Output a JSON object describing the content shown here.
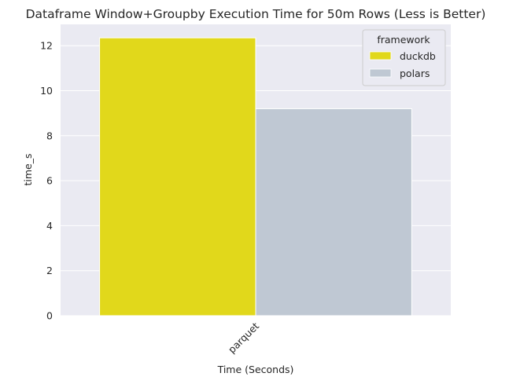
{
  "chart_data": {
    "type": "bar",
    "title": "Dataframe Window+Groupby Execution Time for 50m Rows (Less is Better)",
    "xlabel": "Time (Seconds)",
    "ylabel": "time_s",
    "categories": [
      "parquet"
    ],
    "series": [
      {
        "name": "duckdb",
        "values": [
          12.35
        ],
        "color": "#e1d81b"
      },
      {
        "name": "polars",
        "values": [
          9.2
        ],
        "color": "#bfc8d3"
      }
    ],
    "ylim": [
      0,
      12.95
    ],
    "yticks": [
      0,
      2,
      4,
      6,
      8,
      10,
      12
    ],
    "grid": true,
    "legend": {
      "title": "framework",
      "position": "top-right"
    },
    "colors": {
      "plot_bg": "#eaeaf2",
      "grid": "#ffffff"
    }
  }
}
